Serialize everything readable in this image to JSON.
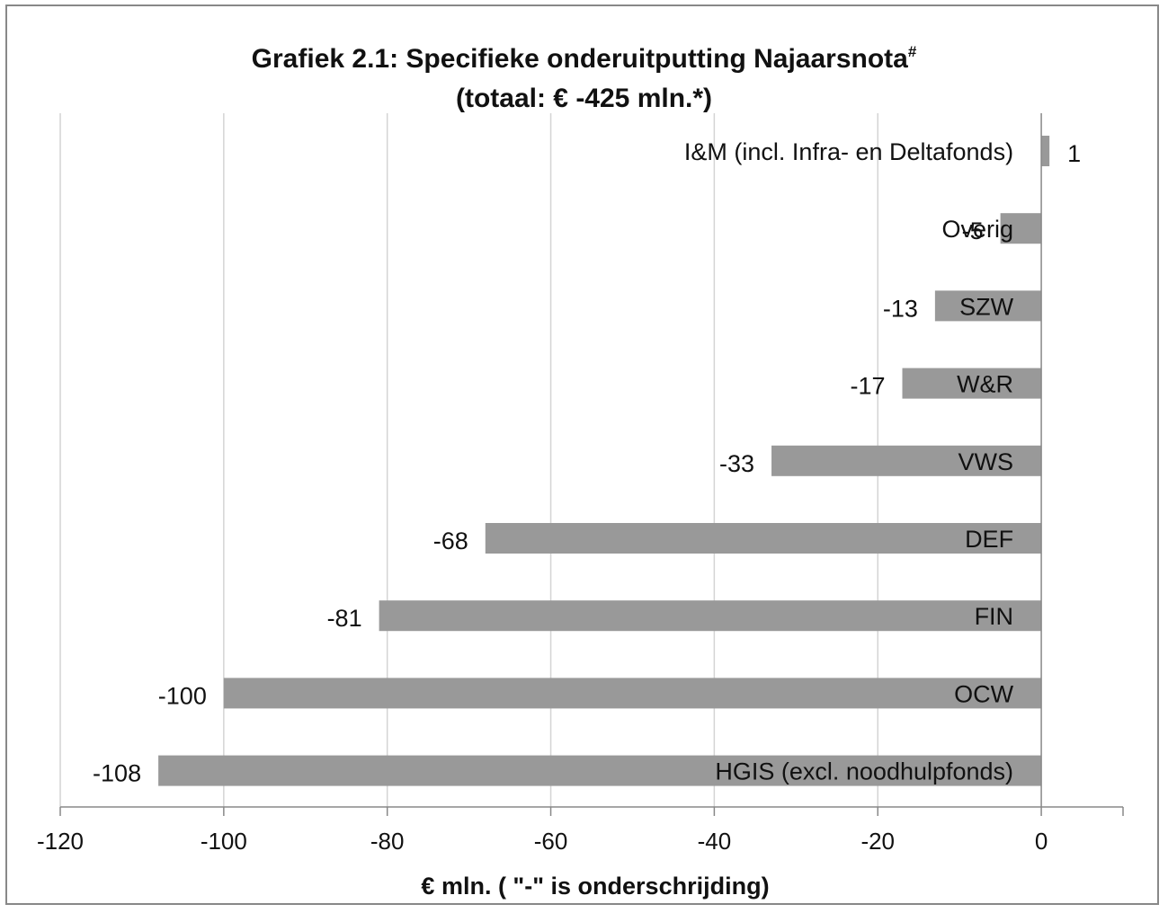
{
  "chart_data": {
    "type": "bar",
    "orientation": "horizontal",
    "title_main": "Grafiek 2.1: Specifieke onderuitputting Najaarsnota",
    "title_sup": "#",
    "subtitle": "(totaal: € -425 mln.*)",
    "xlabel": "€ mln. ( \"-\" is onderschrijding)",
    "xlim": [
      -120,
      10
    ],
    "xticks": [
      -120,
      -100,
      -80,
      -60,
      -40,
      -20,
      0
    ],
    "grid": true,
    "legend": "none",
    "bar_color": "#999999",
    "categories": [
      "I&M (incl. Infra- en Deltafonds)",
      "Overig",
      "SZW",
      "W&R",
      "VWS",
      "DEF",
      "FIN",
      "OCW",
      "HGIS (excl. noodhulpfonds)"
    ],
    "values": [
      1,
      -5,
      -13,
      -17,
      -33,
      -68,
      -81,
      -100,
      -108
    ],
    "data_labels": [
      "1",
      "-5",
      "-13",
      "-17",
      "-33",
      "-68",
      "-81",
      "-100",
      "-108"
    ]
  }
}
